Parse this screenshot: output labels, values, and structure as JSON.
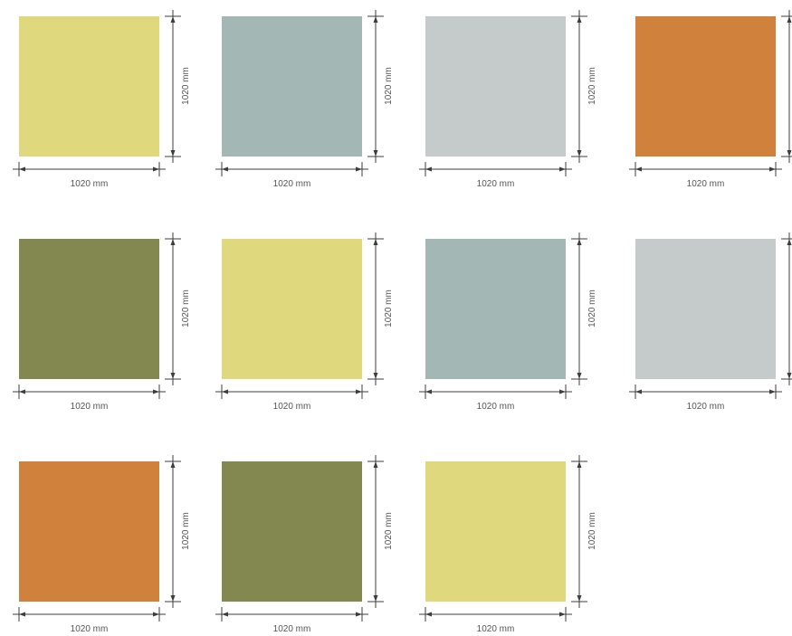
{
  "swatches": [
    {
      "color": "#e0d87c",
      "width_label": "1020 mm",
      "height_label": "1020 mm"
    },
    {
      "color": "#a3b7b4",
      "width_label": "1020 mm",
      "height_label": "1020 mm"
    },
    {
      "color": "#c5cbca",
      "width_label": "1020 mm",
      "height_label": "1020 mm"
    },
    {
      "color": "#d0813b",
      "width_label": "1020 mm",
      "height_label": ""
    },
    {
      "color": "#82884f",
      "width_label": "1020 mm",
      "height_label": "1020 mm"
    },
    {
      "color": "#e0d87c",
      "width_label": "1020 mm",
      "height_label": "1020 mm"
    },
    {
      "color": "#a3b7b4",
      "width_label": "1020 mm",
      "height_label": "1020 mm"
    },
    {
      "color": "#c5cbca",
      "width_label": "1020 mm",
      "height_label": ""
    },
    {
      "color": "#d0813b",
      "width_label": "1020 mm",
      "height_label": "1020 mm"
    },
    {
      "color": "#82884f",
      "width_label": "1020 mm",
      "height_label": "1020 mm"
    },
    {
      "color": "#e0d87c",
      "width_label": "1020 mm",
      "height_label": "1020 mm"
    }
  ]
}
